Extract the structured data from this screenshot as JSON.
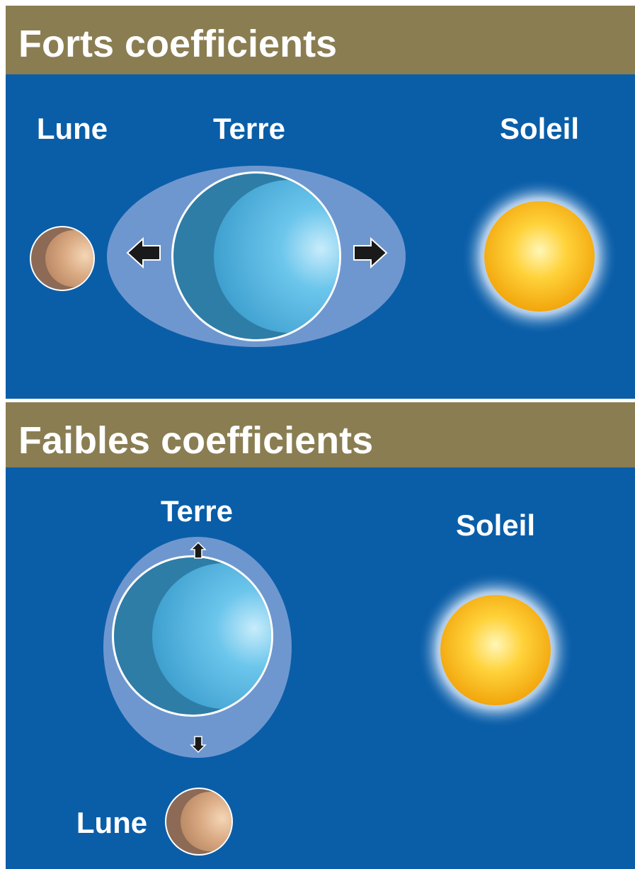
{
  "sections": [
    {
      "title": "Forts coefficients",
      "moon_label": "Lune",
      "earth_label": "Terre",
      "sun_label": "Soleil"
    },
    {
      "title": "Faibles coefficients",
      "earth_label": "Terre",
      "sun_label": "Soleil",
      "moon_label": "Lune"
    }
  ]
}
